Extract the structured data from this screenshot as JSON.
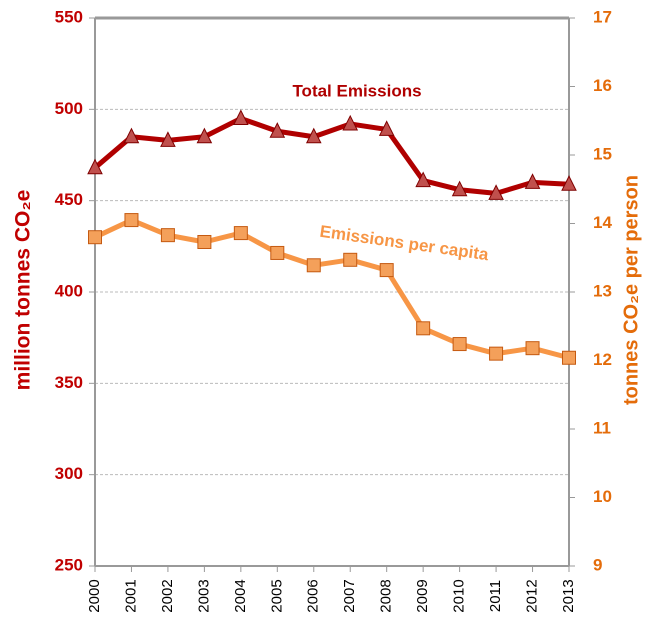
{
  "chart_data": {
    "type": "line",
    "categories": [
      "2000",
      "2001",
      "2002",
      "2003",
      "2004",
      "2005",
      "2006",
      "2007",
      "2008",
      "2009",
      "2010",
      "2011",
      "2012",
      "2013"
    ],
    "series": [
      {
        "name": "Total Emissions",
        "color": "#b00000",
        "marker_color": "#c0504d",
        "marker": "triangle",
        "axis": "y",
        "values": [
          468,
          485,
          483,
          485,
          495,
          488,
          485,
          492,
          489,
          461,
          456,
          454,
          460,
          459
        ]
      },
      {
        "name": "Emissions per capita",
        "color": "#f79646",
        "marker_color": "#f4a05a",
        "marker": "square",
        "axis": "y2",
        "values": [
          13.8,
          14.05,
          13.83,
          13.73,
          13.86,
          13.57,
          13.39,
          13.47,
          13.32,
          12.47,
          12.24,
          12.1,
          12.18,
          12.04
        ]
      }
    ],
    "ylabel": "million tonnes CO₂e",
    "y2label": "tonnes CO₂e per person",
    "ylim": [
      250,
      550
    ],
    "yticks": [
      250,
      300,
      350,
      400,
      450,
      500,
      550
    ],
    "y2lim": [
      9,
      17
    ],
    "y2ticks": [
      9,
      10,
      11,
      12,
      13,
      14,
      15,
      16,
      17
    ],
    "grid": true
  }
}
